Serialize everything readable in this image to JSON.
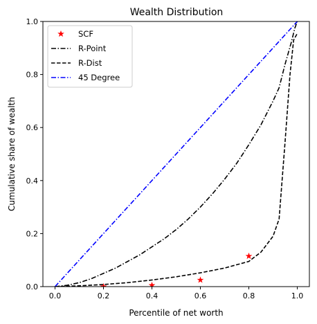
{
  "chart_data": {
    "type": "line",
    "title": "Wealth Distribution",
    "xlabel": "Percentile of net worth",
    "ylabel": "Cumulative share of wealth",
    "xlim": [
      -0.05,
      1.05
    ],
    "ylim": [
      0.0,
      1.0
    ],
    "xticks": [
      0.0,
      0.2,
      0.4,
      0.6,
      0.8,
      1.0
    ],
    "xtick_labels": [
      "0.0",
      "0.2",
      "0.4",
      "0.6",
      "0.8",
      "1.0"
    ],
    "yticks": [
      0.0,
      0.2,
      0.4,
      0.6,
      0.8,
      1.0
    ],
    "ytick_labels": [
      "0.0",
      "0.2",
      "0.4",
      "0.6",
      "0.8",
      "1.0"
    ],
    "grid": false,
    "legend_position": "top-left",
    "series": [
      {
        "name": "SCF",
        "style": "star-markers",
        "color": "#ff0000",
        "x": [
          0.2,
          0.4,
          0.6,
          0.8
        ],
        "y": [
          0.0,
          0.005,
          0.025,
          0.115
        ]
      },
      {
        "name": "R-Point",
        "style": "dashdot",
        "color": "#000000",
        "x": [
          0.0,
          0.05,
          0.1,
          0.15,
          0.2,
          0.25,
          0.3,
          0.35,
          0.4,
          0.45,
          0.5,
          0.55,
          0.6,
          0.65,
          0.7,
          0.75,
          0.8,
          0.85,
          0.9,
          0.925,
          0.95,
          0.975,
          0.99,
          1.0
        ],
        "y": [
          0.0,
          0.005,
          0.015,
          0.03,
          0.05,
          0.07,
          0.095,
          0.12,
          0.15,
          0.18,
          0.215,
          0.255,
          0.3,
          0.35,
          0.405,
          0.465,
          0.535,
          0.61,
          0.7,
          0.75,
          0.84,
          0.92,
          0.975,
          1.0
        ]
      },
      {
        "name": "R-Dist",
        "style": "dashed",
        "color": "#000000",
        "x": [
          0.0,
          0.1,
          0.2,
          0.3,
          0.4,
          0.5,
          0.6,
          0.7,
          0.8,
          0.85,
          0.9,
          0.925,
          0.95,
          0.97,
          0.985,
          1.0
        ],
        "y": [
          0.0,
          0.003,
          0.008,
          0.015,
          0.025,
          0.037,
          0.052,
          0.07,
          0.095,
          0.13,
          0.19,
          0.255,
          0.55,
          0.8,
          0.93,
          0.955
        ]
      },
      {
        "name": "45 Degree",
        "style": "dashdot",
        "color": "#0000ff",
        "x": [
          0.0,
          1.0
        ],
        "y": [
          0.0,
          1.0
        ]
      }
    ]
  }
}
